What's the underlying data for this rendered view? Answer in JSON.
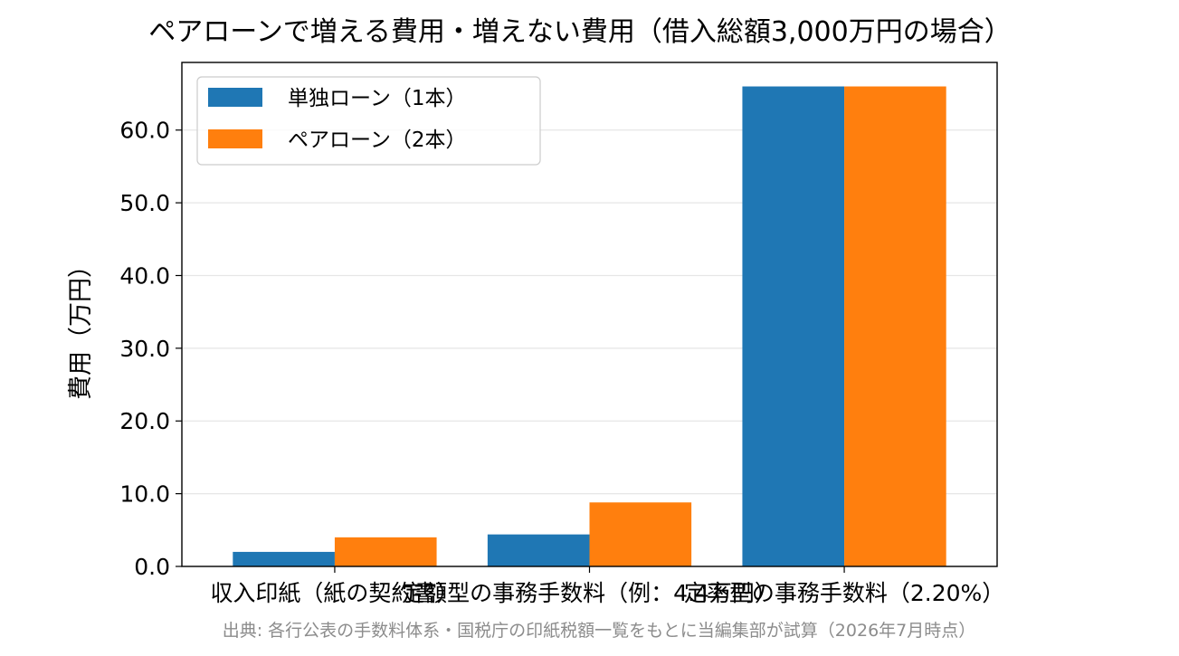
{
  "chart_data": {
    "type": "bar",
    "title": "ペアローンで増える費用・増えない費用（借入総額3,000万円の場合）",
    "xlabel": "",
    "ylabel": "費用（万円）",
    "categories": [
      "収入印紙（紙の契約書）",
      "定額型の事務手数料（例：4.4万円）",
      "定率型の事務手数料（2.20%）"
    ],
    "series": [
      {
        "name": "単独ローン（1本）",
        "color": "#1f77b4",
        "values": [
          2.0,
          4.4,
          66.0
        ]
      },
      {
        "name": "ペアローン（2本）",
        "color": "#ff7f0e",
        "values": [
          4.0,
          8.8,
          66.0
        ]
      }
    ],
    "ylim": [
      0,
      69.3
    ],
    "yticks": [
      "0.0",
      "10.0",
      "20.0",
      "30.0",
      "40.0",
      "50.0",
      "60.0"
    ],
    "grid": "horizontal",
    "legend_position": "upper-left"
  },
  "source_note": "出典: 各行公表の手数料体系・国税庁の印紙税額一覧をもとに当編集部が試算（2026年7月時点）"
}
